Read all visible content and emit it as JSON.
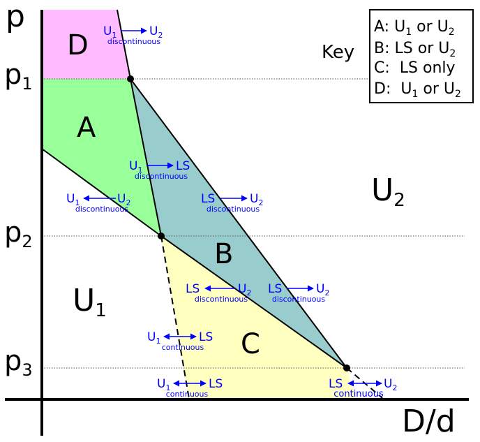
{
  "axes": {
    "y_label": "p",
    "x_label": "D/d",
    "y_ticks": [
      {
        "base": "p",
        "sub": "1"
      },
      {
        "base": "p",
        "sub": "2"
      },
      {
        "base": "p",
        "sub": "3"
      }
    ]
  },
  "regions": {
    "A": "A",
    "B": "B",
    "C": "C",
    "D": "D",
    "U1": {
      "base": "U",
      "sub": "1"
    },
    "U2": {
      "base": "U",
      "sub": "2"
    }
  },
  "colors": {
    "A": "#99ff99",
    "B": "#99cccc",
    "C": "#ffffbf",
    "D": "#ffbbff",
    "annotation": "#0000ff",
    "grid": "#555555"
  },
  "key": {
    "title": "Key",
    "rows": [
      {
        "letter": "A:",
        "text_a": "U",
        "sub_a": "1",
        "mid": " or ",
        "text_b": "U",
        "sub_b": "2"
      },
      {
        "letter": "B:",
        "text_a": "LS",
        "sub_a": "",
        "mid": " or ",
        "text_b": "U",
        "sub_b": "2"
      },
      {
        "letter": "C:",
        "text_a": "LS only",
        "sub_a": "",
        "mid": "",
        "text_b": "",
        "sub_b": ""
      },
      {
        "letter": "D:",
        "text_a": "U",
        "sub_a": "1",
        "mid": " or ",
        "text_b": "U",
        "sub_b": "2"
      }
    ]
  },
  "transitions": [
    {
      "left": "U",
      "left_sub": "1",
      "right": "U",
      "right_sub": "2",
      "direction": "right",
      "kind": "discontinuous"
    },
    {
      "left": "U",
      "left_sub": "1",
      "right": "LS",
      "right_sub": "",
      "direction": "right",
      "kind": "discontinuous"
    },
    {
      "left": "U",
      "left_sub": "1",
      "right": "U",
      "right_sub": "2",
      "direction": "left",
      "kind": "discontinuous"
    },
    {
      "left": "LS",
      "left_sub": "",
      "right": "U",
      "right_sub": "2",
      "direction": "right",
      "kind": "discontinuous"
    },
    {
      "left": "LS",
      "left_sub": "",
      "right": "U",
      "right_sub": "2",
      "direction": "left",
      "kind": "discontinuous"
    },
    {
      "left": "LS",
      "left_sub": "",
      "right": "U",
      "right_sub": "2",
      "direction": "right",
      "kind": "discontinuous"
    },
    {
      "left": "U",
      "left_sub": "1",
      "right": "LS",
      "right_sub": "",
      "direction": "both",
      "kind": "continuous"
    },
    {
      "left": "U",
      "left_sub": "1",
      "right": "LS",
      "right_sub": "",
      "direction": "both",
      "kind": "continuous"
    },
    {
      "left": "LS",
      "left_sub": "",
      "right": "U",
      "right_sub": "2",
      "direction": "both",
      "kind": "continuous"
    }
  ]
}
